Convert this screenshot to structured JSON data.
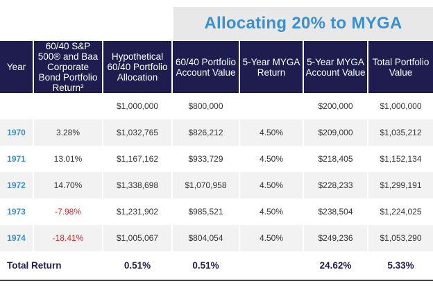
{
  "banner": "Allocating 20% to MYGA",
  "headers": [
    "Year",
    "60/40 S&P 500® and Baa Corporate Bond Portfolio Return²",
    "Hypothetical 60/40 Portfolio Allocation",
    "60/40 Portfolio Account Value",
    "5-Year MYGA Return",
    "5-Year MYGA Account Value",
    "Total Portfolio Value"
  ],
  "rows": [
    [
      "",
      "",
      "$1,000,000",
      "$800,000",
      "",
      "$200,000",
      "$1,000,000"
    ],
    [
      "1970",
      "3.28%",
      "$1,032,765",
      "$826,212",
      "4.50%",
      "$209,000",
      "$1,035,212"
    ],
    [
      "1971",
      "13.01%",
      "$1,167,162",
      "$933,729",
      "4.50%",
      "$218,405",
      "$1,152,134"
    ],
    [
      "1972",
      "14.70%",
      "$1,338,698",
      "$1,070,958",
      "4.50%",
      "$228,233",
      "$1,299,191"
    ],
    [
      "1973",
      "-7.98%",
      "$1,231,902",
      "$985,521",
      "4.50%",
      "$238,504",
      "$1,224,025"
    ],
    [
      "1974",
      "-18.41%",
      "$1,005,067",
      "$804,054",
      "4.50%",
      "$249,236",
      "$1,053,290"
    ]
  ],
  "total": {
    "label": "Total Return",
    "values": [
      "",
      "0.51%",
      "0.51%",
      "",
      "24.62%",
      "5.33%"
    ]
  },
  "colors": {
    "header_bg": "#1f1d4f",
    "accent_blue": "#3a8fd0",
    "negative_red": "#d0282e",
    "stripe": "#f2f2f2"
  }
}
